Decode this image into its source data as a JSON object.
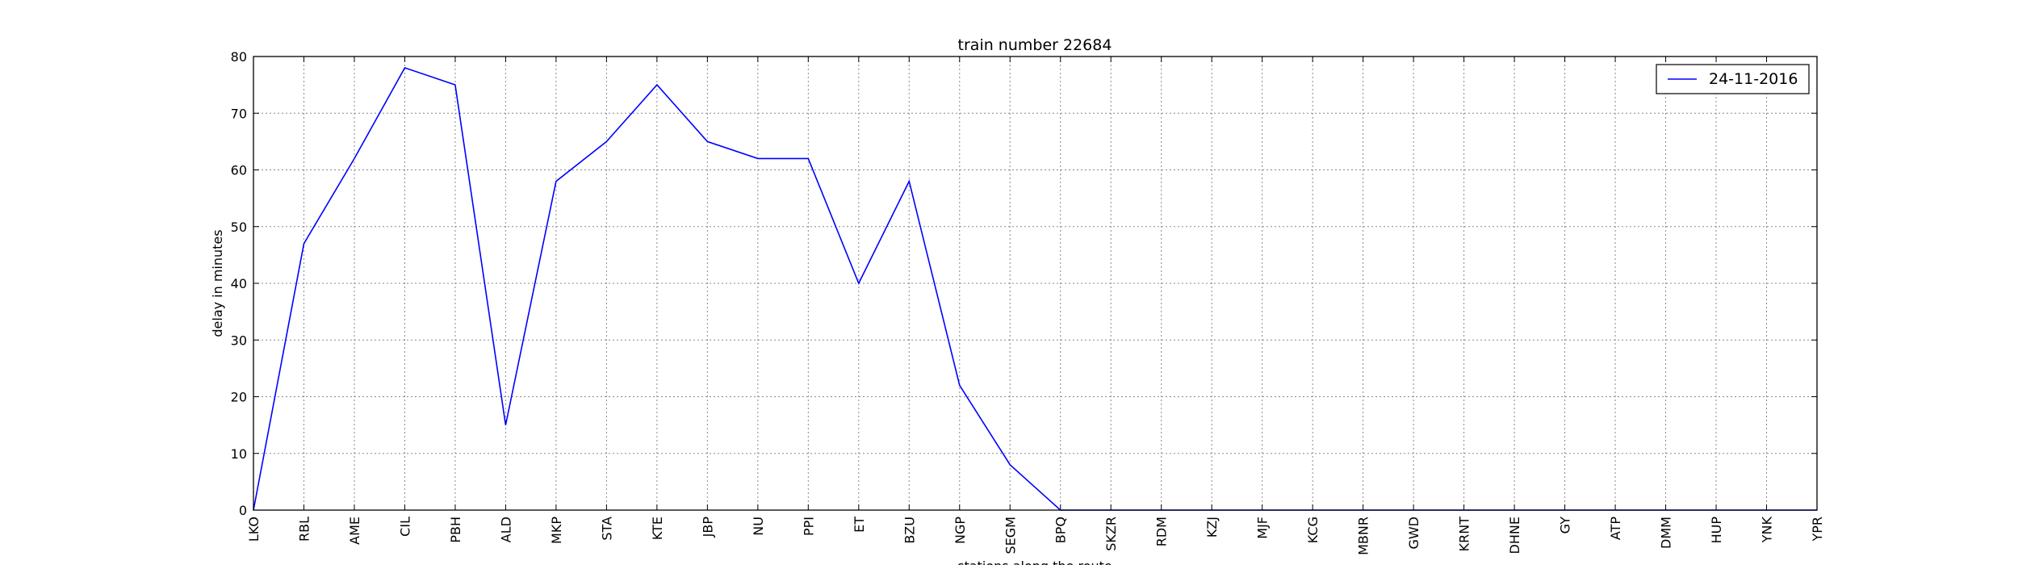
{
  "chart_data": {
    "type": "line",
    "title": "train number 22684",
    "xlabel": "stations along the route",
    "ylabel": "delay in minutes",
    "ylim": [
      0,
      80
    ],
    "yticks": [
      0,
      10,
      20,
      30,
      40,
      50,
      60,
      70,
      80
    ],
    "grid": true,
    "legend_position": "top-right",
    "categories": [
      "LKO",
      "RBL",
      "AME",
      "CIL",
      "PBH",
      "ALD",
      "MKP",
      "STA",
      "KTE",
      "JBP",
      "NU",
      "PPI",
      "ET",
      "BZU",
      "NGP",
      "SEGM",
      "BPQ",
      "SKZR",
      "RDM",
      "KZJ",
      "MJF",
      "KCG",
      "MBNR",
      "GWD",
      "KRNT",
      "DHNE",
      "GY",
      "ATP",
      "DMM",
      "HUP",
      "YNK",
      "YPR"
    ],
    "series": [
      {
        "name": "24-11-2016",
        "color": "#0000ff",
        "values": [
          0,
          47,
          62,
          78,
          75,
          15,
          58,
          65,
          75,
          65,
          62,
          62,
          40,
          58,
          22,
          8,
          0,
          0,
          0,
          0,
          0,
          0,
          0,
          0,
          0,
          0,
          0,
          0,
          0,
          0,
          0,
          0
        ]
      }
    ]
  }
}
